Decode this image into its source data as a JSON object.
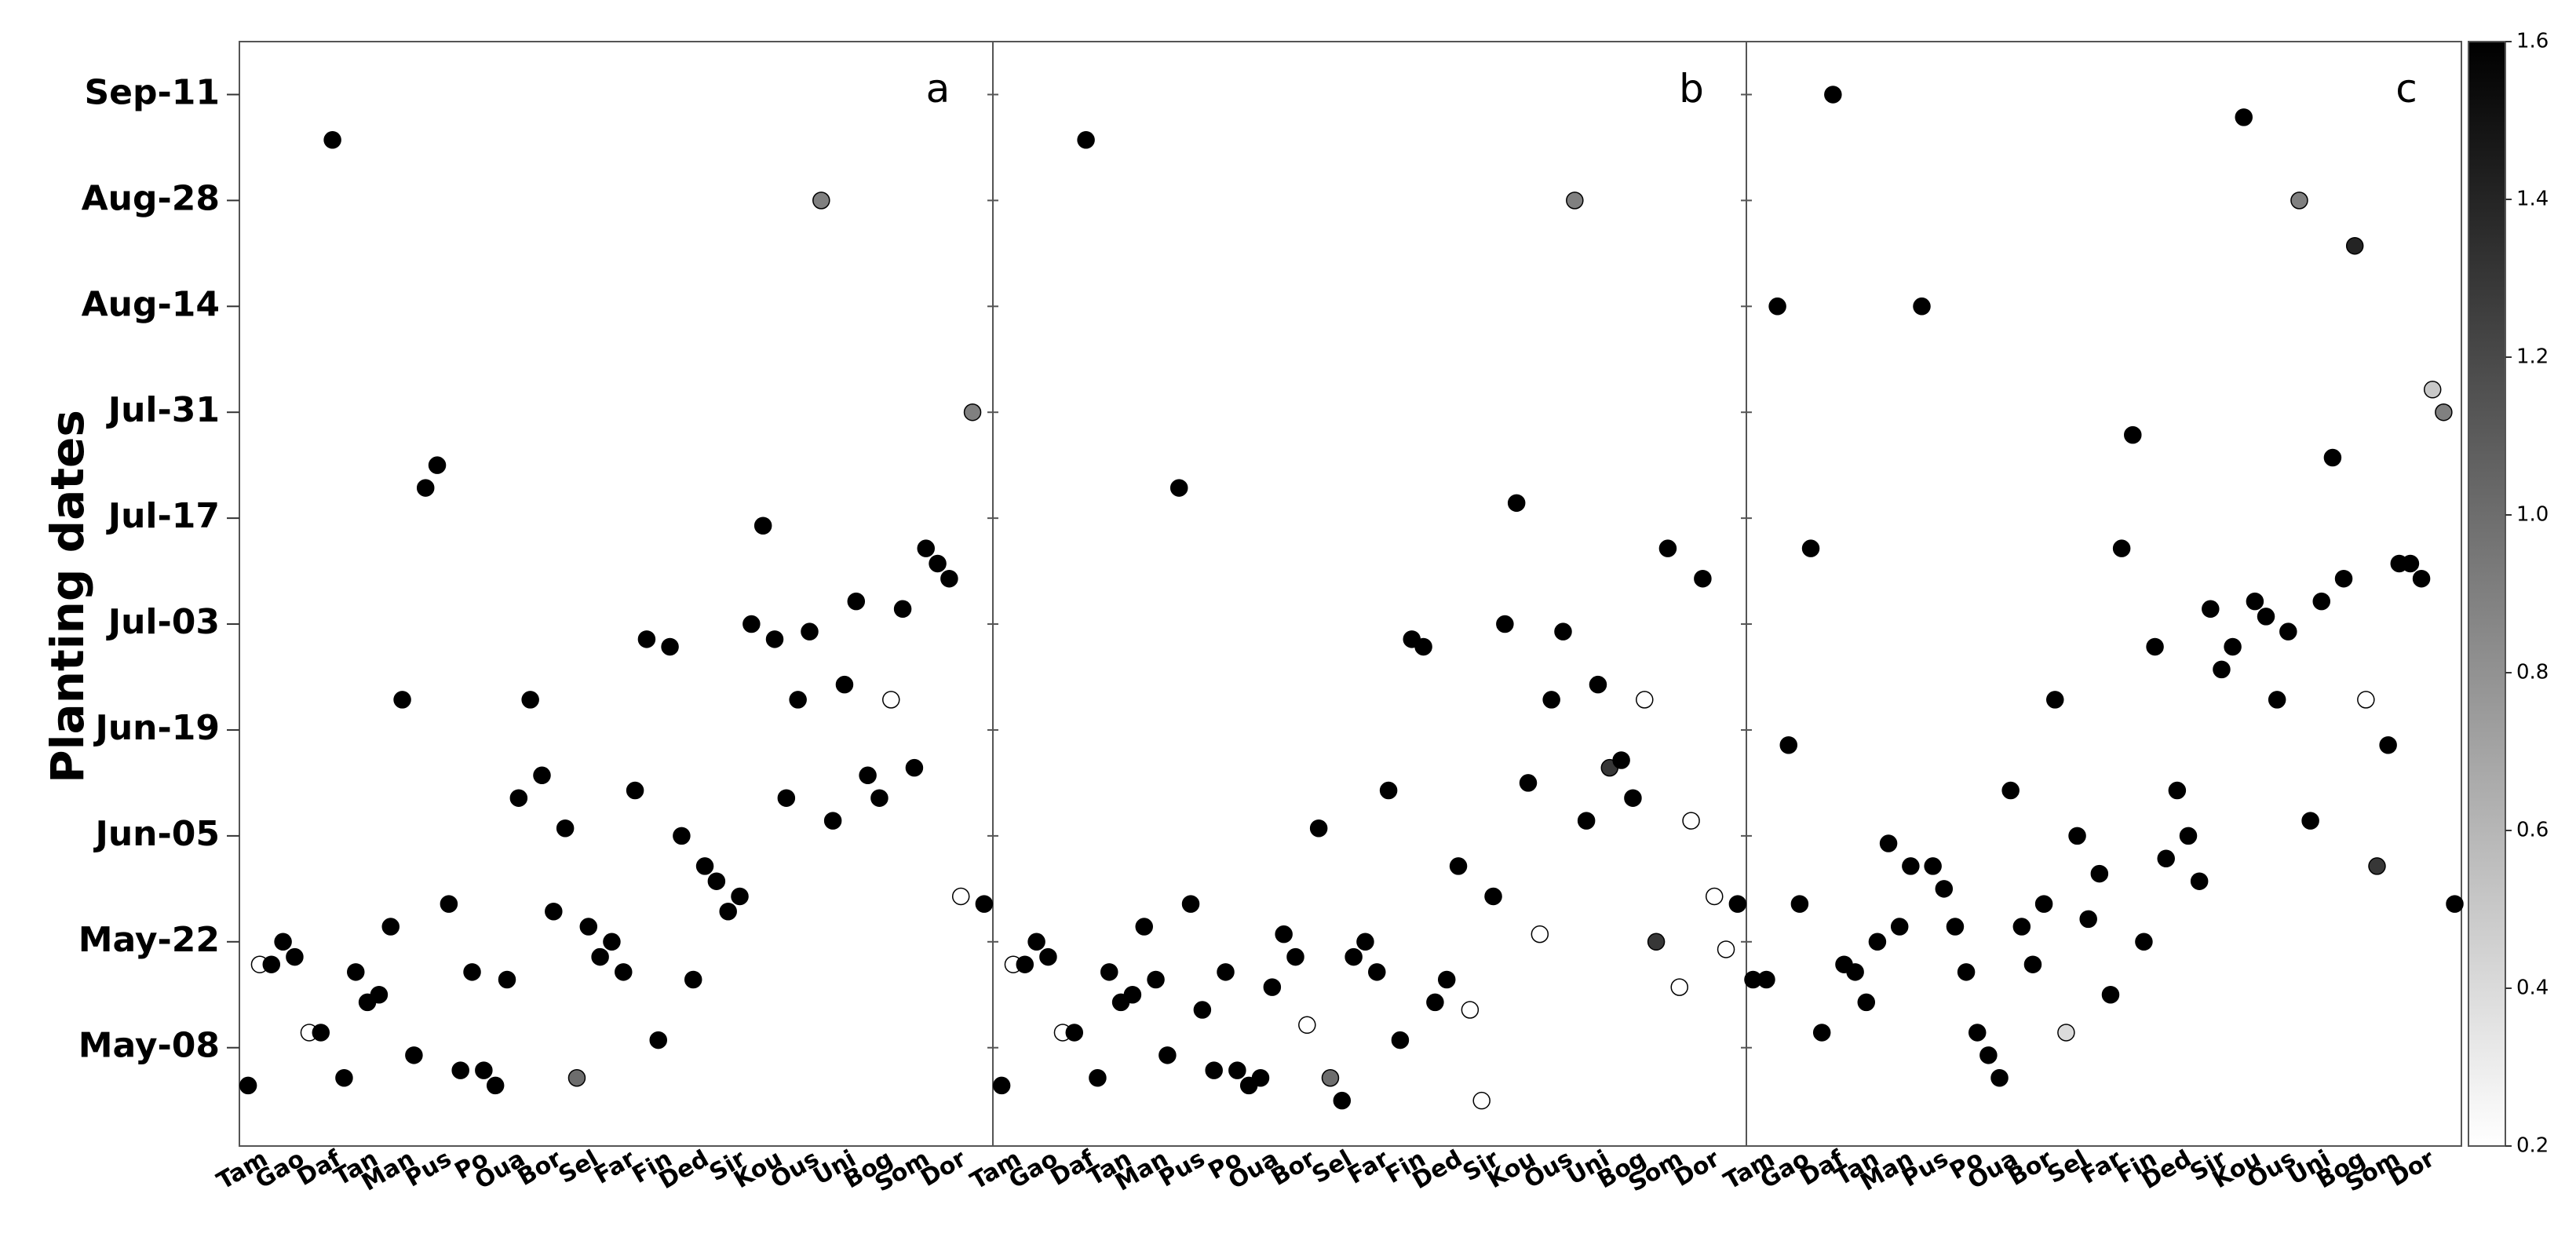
{
  "chart_data": {
    "type": "scatter",
    "ylabel": "Planting dates",
    "y_ticks": [
      {
        "date": "May-08",
        "day": 0
      },
      {
        "date": "May-22",
        "day": 14
      },
      {
        "date": "Jun-05",
        "day": 28
      },
      {
        "date": "Jun-19",
        "day": 42
      },
      {
        "date": "Jul-03",
        "day": 56
      },
      {
        "date": "Jul-17",
        "day": 70
      },
      {
        "date": "Jul-31",
        "day": 84
      },
      {
        "date": "Aug-14",
        "day": 98
      },
      {
        "date": "Aug-28",
        "day": 112
      },
      {
        "date": "Sep-11",
        "day": 126
      }
    ],
    "ylim_days": [
      -13,
      133
    ],
    "x_tick_labels": [
      "Tam",
      "Gao",
      "Daf",
      "Tan",
      "Man",
      "Pus",
      "Po",
      "Oua",
      "Bor",
      "Sel",
      "Far",
      "Fin",
      "Ded",
      "Sir",
      "Kou",
      "Ous",
      "Uni",
      "Bog",
      "Som",
      "Dor"
    ],
    "colorbar": {
      "ticks": [
        0.2,
        0.4,
        0.6,
        0.8,
        1.0,
        1.2,
        1.4,
        1.6
      ],
      "range": [
        0.2,
        1.6
      ],
      "colormap": "Greys"
    },
    "panels": [
      {
        "label": "a",
        "points": [
          {
            "x": 0.95,
            "day": -5,
            "c": 1.6
          },
          {
            "x": 1.15,
            "day": 11,
            "c": 0.2
          },
          {
            "x": 1.35,
            "day": 11,
            "c": 1.6
          },
          {
            "x": 1.55,
            "day": 14,
            "c": 1.6
          },
          {
            "x": 1.75,
            "day": 12,
            "c": 1.6
          },
          {
            "x": 2.0,
            "day": 2,
            "c": 0.2
          },
          {
            "x": 2.2,
            "day": 2,
            "c": 1.6
          },
          {
            "x": 2.4,
            "day": 120,
            "c": 1.6
          },
          {
            "x": 2.6,
            "day": -4,
            "c": 1.6
          },
          {
            "x": 2.8,
            "day": 10,
            "c": 1.6
          },
          {
            "x": 3.0,
            "day": 6,
            "c": 1.6
          },
          {
            "x": 3.2,
            "day": 7,
            "c": 1.6
          },
          {
            "x": 3.4,
            "day": 16,
            "c": 1.6
          },
          {
            "x": 3.6,
            "day": 46,
            "c": 1.6
          },
          {
            "x": 3.8,
            "day": -1,
            "c": 1.6
          },
          {
            "x": 4.0,
            "day": 74,
            "c": 1.6
          },
          {
            "x": 4.2,
            "day": 77,
            "c": 1.6
          },
          {
            "x": 4.4,
            "day": 19,
            "c": 1.6
          },
          {
            "x": 4.6,
            "day": -3,
            "c": 1.6
          },
          {
            "x": 4.8,
            "day": 10,
            "c": 1.6
          },
          {
            "x": 5.0,
            "day": -3,
            "c": 1.6
          },
          {
            "x": 5.2,
            "day": -5,
            "c": 1.6
          },
          {
            "x": 5.4,
            "day": 9,
            "c": 1.6
          },
          {
            "x": 5.6,
            "day": 33,
            "c": 1.6
          },
          {
            "x": 5.8,
            "day": 46,
            "c": 1.6
          },
          {
            "x": 6.0,
            "day": 36,
            "c": 1.6
          },
          {
            "x": 6.2,
            "day": 18,
            "c": 1.6
          },
          {
            "x": 6.4,
            "day": 29,
            "c": 1.6
          },
          {
            "x": 6.6,
            "day": -4,
            "c": 1.0
          },
          {
            "x": 6.8,
            "day": 16,
            "c": 1.6
          },
          {
            "x": 7.0,
            "day": 12,
            "c": 1.6
          },
          {
            "x": 7.2,
            "day": 14,
            "c": 1.6
          },
          {
            "x": 7.4,
            "day": 10,
            "c": 1.6
          },
          {
            "x": 7.6,
            "day": 34,
            "c": 1.6
          },
          {
            "x": 7.8,
            "day": 54,
            "c": 1.6
          },
          {
            "x": 8.0,
            "day": 1,
            "c": 1.6
          },
          {
            "x": 8.2,
            "day": 53,
            "c": 1.6
          },
          {
            "x": 8.4,
            "day": 28,
            "c": 1.6
          },
          {
            "x": 8.6,
            "day": 9,
            "c": 1.6
          },
          {
            "x": 8.8,
            "day": 24,
            "c": 1.6
          },
          {
            "x": 9.0,
            "day": 22,
            "c": 1.6
          },
          {
            "x": 9.2,
            "day": 18,
            "c": 1.6
          },
          {
            "x": 9.4,
            "day": 20,
            "c": 1.6
          },
          {
            "x": 9.6,
            "day": 56,
            "c": 1.6
          },
          {
            "x": 9.8,
            "day": 69,
            "c": 1.6
          },
          {
            "x": 10.0,
            "day": 54,
            "c": 1.6
          },
          {
            "x": 10.2,
            "day": 33,
            "c": 1.6
          },
          {
            "x": 10.4,
            "day": 46,
            "c": 1.6
          },
          {
            "x": 10.6,
            "day": 55,
            "c": 1.6
          },
          {
            "x": 10.8,
            "day": 112,
            "c": 0.9
          },
          {
            "x": 11.0,
            "day": 30,
            "c": 1.6
          },
          {
            "x": 11.2,
            "day": 48,
            "c": 1.6
          },
          {
            "x": 11.4,
            "day": 59,
            "c": 1.6
          },
          {
            "x": 11.6,
            "day": 36,
            "c": 1.6
          },
          {
            "x": 11.8,
            "day": 33,
            "c": 1.6
          },
          {
            "x": 12.0,
            "day": 46,
            "c": 0.2
          },
          {
            "x": 12.2,
            "day": 58,
            "c": 1.6
          },
          {
            "x": 12.4,
            "day": 37,
            "c": 1.6
          },
          {
            "x": 12.6,
            "day": 66,
            "c": 1.6
          },
          {
            "x": 12.8,
            "day": 64,
            "c": 1.6
          },
          {
            "x": 13.0,
            "day": 62,
            "c": 1.6
          },
          {
            "x": 13.2,
            "day": 20,
            "c": 0.2
          },
          {
            "x": 13.4,
            "day": 84,
            "c": 0.9
          },
          {
            "x": 13.6,
            "day": 19,
            "c": 1.6
          }
        ]
      },
      {
        "label": "b",
        "points": [
          {
            "x": 0.95,
            "day": -5,
            "c": 1.6
          },
          {
            "x": 1.15,
            "day": 11,
            "c": 0.2
          },
          {
            "x": 1.35,
            "day": 11,
            "c": 1.6
          },
          {
            "x": 1.55,
            "day": 14,
            "c": 1.6
          },
          {
            "x": 1.75,
            "day": 12,
            "c": 1.6
          },
          {
            "x": 2.0,
            "day": 2,
            "c": 0.2
          },
          {
            "x": 2.2,
            "day": 2,
            "c": 1.6
          },
          {
            "x": 2.4,
            "day": 120,
            "c": 1.6
          },
          {
            "x": 2.6,
            "day": -4,
            "c": 1.6
          },
          {
            "x": 2.8,
            "day": 10,
            "c": 1.6
          },
          {
            "x": 3.0,
            "day": 6,
            "c": 1.6
          },
          {
            "x": 3.2,
            "day": 7,
            "c": 1.6
          },
          {
            "x": 3.4,
            "day": 16,
            "c": 1.6
          },
          {
            "x": 3.6,
            "day": 9,
            "c": 1.6
          },
          {
            "x": 3.8,
            "day": -1,
            "c": 1.6
          },
          {
            "x": 4.0,
            "day": 74,
            "c": 1.6
          },
          {
            "x": 4.2,
            "day": 19,
            "c": 1.6
          },
          {
            "x": 4.4,
            "day": 5,
            "c": 1.6
          },
          {
            "x": 4.6,
            "day": -3,
            "c": 1.6
          },
          {
            "x": 4.8,
            "day": 10,
            "c": 1.6
          },
          {
            "x": 5.0,
            "day": -3,
            "c": 1.6
          },
          {
            "x": 5.2,
            "day": -5,
            "c": 1.6
          },
          {
            "x": 5.4,
            "day": -4,
            "c": 1.6
          },
          {
            "x": 5.6,
            "day": 8,
            "c": 1.6
          },
          {
            "x": 5.8,
            "day": 15,
            "c": 1.6
          },
          {
            "x": 6.0,
            "day": 12,
            "c": 1.6
          },
          {
            "x": 6.2,
            "day": 3,
            "c": 0.2
          },
          {
            "x": 6.4,
            "day": 29,
            "c": 1.6
          },
          {
            "x": 6.6,
            "day": -4,
            "c": 1.0
          },
          {
            "x": 6.8,
            "day": -7,
            "c": 1.6
          },
          {
            "x": 7.0,
            "day": 12,
            "c": 1.6
          },
          {
            "x": 7.2,
            "day": 14,
            "c": 1.6
          },
          {
            "x": 7.4,
            "day": 10,
            "c": 1.6
          },
          {
            "x": 7.6,
            "day": 34,
            "c": 1.6
          },
          {
            "x": 7.8,
            "day": 1,
            "c": 1.6
          },
          {
            "x": 8.0,
            "day": 54,
            "c": 1.6
          },
          {
            "x": 8.2,
            "day": 53,
            "c": 1.6
          },
          {
            "x": 8.4,
            "day": 6,
            "c": 1.6
          },
          {
            "x": 8.6,
            "day": 9,
            "c": 1.6
          },
          {
            "x": 8.8,
            "day": 24,
            "c": 1.6
          },
          {
            "x": 9.0,
            "day": 5,
            "c": 0.2
          },
          {
            "x": 9.2,
            "day": -7,
            "c": 0.2
          },
          {
            "x": 9.4,
            "day": 20,
            "c": 1.6
          },
          {
            "x": 9.6,
            "day": 56,
            "c": 1.6
          },
          {
            "x": 9.8,
            "day": 72,
            "c": 1.6
          },
          {
            "x": 10.0,
            "day": 35,
            "c": 1.6
          },
          {
            "x": 10.2,
            "day": 15,
            "c": 0.2
          },
          {
            "x": 10.4,
            "day": 46,
            "c": 1.6
          },
          {
            "x": 10.6,
            "day": 55,
            "c": 1.6
          },
          {
            "x": 10.8,
            "day": 112,
            "c": 0.9
          },
          {
            "x": 11.0,
            "day": 30,
            "c": 1.6
          },
          {
            "x": 11.2,
            "day": 48,
            "c": 1.6
          },
          {
            "x": 11.4,
            "day": 37,
            "c": 1.3
          },
          {
            "x": 11.6,
            "day": 38,
            "c": 1.6
          },
          {
            "x": 11.8,
            "day": 33,
            "c": 1.6
          },
          {
            "x": 12.0,
            "day": 46,
            "c": 0.2
          },
          {
            "x": 12.2,
            "day": 14,
            "c": 1.3
          },
          {
            "x": 12.4,
            "day": 66,
            "c": 1.6
          },
          {
            "x": 12.6,
            "day": 8,
            "c": 0.2
          },
          {
            "x": 12.8,
            "day": 30,
            "c": 0.2
          },
          {
            "x": 13.0,
            "day": 62,
            "c": 1.6
          },
          {
            "x": 13.2,
            "day": 20,
            "c": 0.2
          },
          {
            "x": 13.4,
            "day": 13,
            "c": 0.2
          },
          {
            "x": 13.6,
            "day": 19,
            "c": 1.6
          }
        ]
      },
      {
        "label": "c",
        "points": [
          {
            "x": 0.95,
            "day": 9,
            "c": 1.6
          },
          {
            "x": 1.25,
            "day": 9,
            "c": 1.6
          },
          {
            "x": 1.5,
            "day": 98,
            "c": 1.6
          },
          {
            "x": 1.75,
            "day": 40,
            "c": 1.6
          },
          {
            "x": 2.0,
            "day": 19,
            "c": 1.6
          },
          {
            "x": 2.25,
            "day": 66,
            "c": 1.6
          },
          {
            "x": 2.5,
            "day": 2,
            "c": 1.6
          },
          {
            "x": 2.75,
            "day": 126,
            "c": 1.6
          },
          {
            "x": 3.0,
            "day": 11,
            "c": 1.6
          },
          {
            "x": 3.25,
            "day": 10,
            "c": 1.6
          },
          {
            "x": 3.5,
            "day": 6,
            "c": 1.6
          },
          {
            "x": 3.75,
            "day": 14,
            "c": 1.6
          },
          {
            "x": 4.0,
            "day": 27,
            "c": 1.6
          },
          {
            "x": 4.25,
            "day": 16,
            "c": 1.6
          },
          {
            "x": 4.5,
            "day": 24,
            "c": 1.6
          },
          {
            "x": 4.75,
            "day": 98,
            "c": 1.6
          },
          {
            "x": 5.0,
            "day": 24,
            "c": 1.6
          },
          {
            "x": 5.25,
            "day": 21,
            "c": 1.6
          },
          {
            "x": 5.5,
            "day": 16,
            "c": 1.6
          },
          {
            "x": 5.75,
            "day": 10,
            "c": 1.6
          },
          {
            "x": 6.0,
            "day": 2,
            "c": 1.6
          },
          {
            "x": 6.25,
            "day": -1,
            "c": 1.6
          },
          {
            "x": 6.5,
            "day": -4,
            "c": 1.6
          },
          {
            "x": 6.75,
            "day": 34,
            "c": 1.6
          },
          {
            "x": 7.0,
            "day": 16,
            "c": 1.6
          },
          {
            "x": 7.25,
            "day": 11,
            "c": 1.6
          },
          {
            "x": 7.5,
            "day": 19,
            "c": 1.6
          },
          {
            "x": 7.75,
            "day": 46,
            "c": 1.6
          },
          {
            "x": 8.0,
            "day": 2,
            "c": 0.4
          },
          {
            "x": 8.25,
            "day": 28,
            "c": 1.6
          },
          {
            "x": 8.5,
            "day": 17,
            "c": 1.6
          },
          {
            "x": 8.75,
            "day": 23,
            "c": 1.6
          },
          {
            "x": 9.0,
            "day": 7,
            "c": 1.6
          },
          {
            "x": 9.25,
            "day": 66,
            "c": 1.6
          },
          {
            "x": 9.5,
            "day": 81,
            "c": 1.6
          },
          {
            "x": 9.75,
            "day": 14,
            "c": 1.6
          },
          {
            "x": 10.0,
            "day": 53,
            "c": 1.6
          },
          {
            "x": 10.25,
            "day": 25,
            "c": 1.6
          },
          {
            "x": 10.5,
            "day": 34,
            "c": 1.6
          },
          {
            "x": 10.75,
            "day": 28,
            "c": 1.6
          },
          {
            "x": 11.0,
            "day": 22,
            "c": 1.6
          },
          {
            "x": 11.25,
            "day": 58,
            "c": 1.6
          },
          {
            "x": 11.5,
            "day": 50,
            "c": 1.6
          },
          {
            "x": 11.75,
            "day": 53,
            "c": 1.6
          },
          {
            "x": 12.0,
            "day": 123,
            "c": 1.6
          },
          {
            "x": 12.25,
            "day": 59,
            "c": 1.6
          },
          {
            "x": 12.5,
            "day": 57,
            "c": 1.6
          },
          {
            "x": 12.75,
            "day": 46,
            "c": 1.6
          },
          {
            "x": 13.0,
            "day": 55,
            "c": 1.6
          },
          {
            "x": 13.25,
            "day": 112,
            "c": 0.9
          },
          {
            "x": 13.5,
            "day": 30,
            "c": 1.6
          },
          {
            "x": 13.75,
            "day": 59,
            "c": 1.6
          },
          {
            "x": 14.0,
            "day": 78,
            "c": 1.6
          },
          {
            "x": 14.25,
            "day": 62,
            "c": 1.6
          },
          {
            "x": 14.5,
            "day": 106,
            "c": 1.4
          },
          {
            "x": 14.75,
            "day": 46,
            "c": 0.2
          },
          {
            "x": 15.0,
            "day": 24,
            "c": 1.3
          },
          {
            "x": 15.25,
            "day": 40,
            "c": 1.6
          },
          {
            "x": 15.5,
            "day": 64,
            "c": 1.6
          },
          {
            "x": 15.75,
            "day": 64,
            "c": 1.6
          },
          {
            "x": 16.0,
            "day": 62,
            "c": 1.6
          },
          {
            "x": 16.25,
            "day": 87,
            "c": 0.5
          },
          {
            "x": 16.5,
            "day": 84,
            "c": 0.9
          },
          {
            "x": 16.75,
            "day": 19,
            "c": 1.6
          }
        ]
      }
    ]
  }
}
